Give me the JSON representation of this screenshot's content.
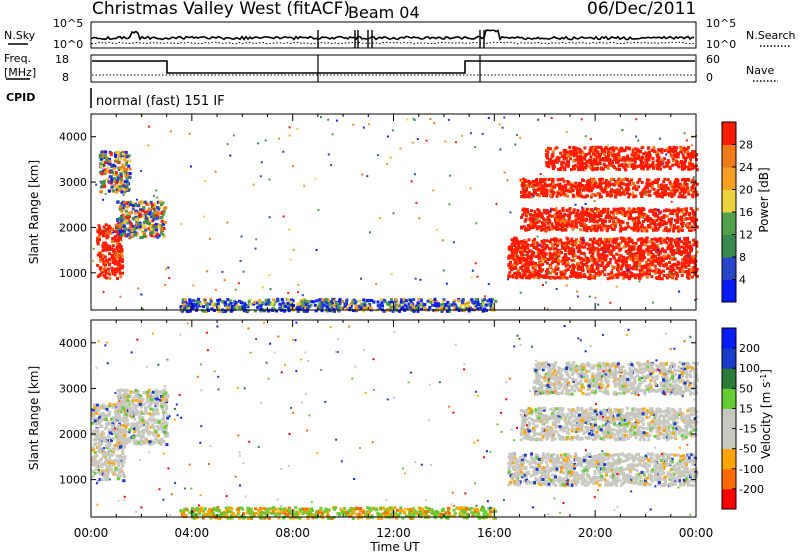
{
  "header": {
    "station": "Christmas Valley West (fitACF)",
    "beam": "Beam 04",
    "date": "06/Dec/2011"
  },
  "noise_panel": {
    "left_label": "N.Sky",
    "right_label": "N.Search",
    "left_ticks": [
      "10^5",
      "10^0"
    ],
    "right_ticks": [
      "10^5",
      "10^0"
    ]
  },
  "freq_panel": {
    "left_label_1": "Freq.",
    "left_label_2": "[MHz]",
    "right_label": "Nave",
    "left_ticks": [
      "18",
      "8"
    ],
    "right_ticks": [
      "60",
      "0"
    ]
  },
  "cpid": {
    "label": "CPID",
    "value": "normal (fast) 151 IF"
  },
  "x_axis": {
    "label": "Time UT",
    "ticks": [
      "00:00",
      "04:00",
      "08:00",
      "12:00",
      "16:00",
      "20:00",
      "00:00"
    ]
  },
  "colors": {
    "power": [
      "#0a1cff",
      "#2845c8",
      "#3a8a4f",
      "#4fa048",
      "#e9d23a",
      "#f5a020",
      "#f07a18",
      "#ff1a00"
    ],
    "velocity": [
      "#ff0000",
      "#ff6a00",
      "#ffa500",
      "#c8c8c0",
      "#c8c8c0",
      "#66cc33",
      "#2a7a3a",
      "#1a3ac8",
      "#0a1cff"
    ]
  },
  "chart_data": [
    {
      "type": "heatmap",
      "quantity": "Power",
      "ylabel": "Slant Range [km]",
      "xlabel": "",
      "xlim_hours": [
        0,
        24
      ],
      "ylim_km": [
        180,
        4500
      ],
      "yticks": [
        "1000",
        "2000",
        "3000",
        "4000"
      ],
      "colorbar": {
        "label": "Power [dB]",
        "ticks": [
          "4",
          "8",
          "12",
          "16",
          "20",
          "24",
          "28"
        ],
        "range": [
          0,
          30
        ]
      },
      "regions": [
        {
          "t0": 0.2,
          "t1": 1.2,
          "r0": 900,
          "r1": 2100,
          "level": "high"
        },
        {
          "t0": 1.0,
          "t1": 2.9,
          "r0": 1800,
          "r1": 2600,
          "level": "mixed"
        },
        {
          "t0": 0.3,
          "t1": 1.5,
          "r0": 2800,
          "r1": 3700,
          "level": "mixed"
        },
        {
          "t0": 16.5,
          "t1": 24.0,
          "r0": 900,
          "r1": 1800,
          "level": "high"
        },
        {
          "t0": 17.0,
          "t1": 24.0,
          "r0": 1950,
          "r1": 2450,
          "level": "high"
        },
        {
          "t0": 17.0,
          "t1": 24.0,
          "r0": 2700,
          "r1": 3100,
          "level": "high"
        },
        {
          "t0": 18.0,
          "t1": 24.0,
          "r0": 3300,
          "r1": 3800,
          "level": "high"
        },
        {
          "t0": 3.5,
          "t1": 16.0,
          "r0": 180,
          "r1": 450,
          "level": "low"
        }
      ]
    },
    {
      "type": "heatmap",
      "quantity": "Velocity",
      "ylabel": "Slant Range [km]",
      "xlabel": "Time UT",
      "xlim_hours": [
        0,
        24
      ],
      "ylim_km": [
        180,
        4500
      ],
      "yticks": [
        "1000",
        "2000",
        "3000",
        "4000"
      ],
      "colorbar": {
        "label": "Velocity [m s^-1]",
        "ticks": [
          "200",
          "100",
          "50",
          "15",
          "-15",
          "-50",
          "-100",
          "-200"
        ],
        "range": [
          -250,
          250
        ]
      },
      "regions": [
        {
          "t0": 0.0,
          "t1": 1.3,
          "r0": 1000,
          "r1": 2700,
          "level": "near-zero"
        },
        {
          "t0": 1.0,
          "t1": 3.0,
          "r0": 1800,
          "r1": 3000,
          "level": "near-zero"
        },
        {
          "t0": 16.5,
          "t1": 24.0,
          "r0": 900,
          "r1": 1600,
          "level": "near-zero"
        },
        {
          "t0": 17.0,
          "t1": 24.0,
          "r0": 1900,
          "r1": 2600,
          "level": "near-zero"
        },
        {
          "t0": 17.5,
          "t1": 24.0,
          "r0": 2900,
          "r1": 3600,
          "level": "near-zero"
        },
        {
          "t0": 3.5,
          "t1": 16.0,
          "r0": 180,
          "r1": 420,
          "level": "positive"
        }
      ]
    }
  ]
}
